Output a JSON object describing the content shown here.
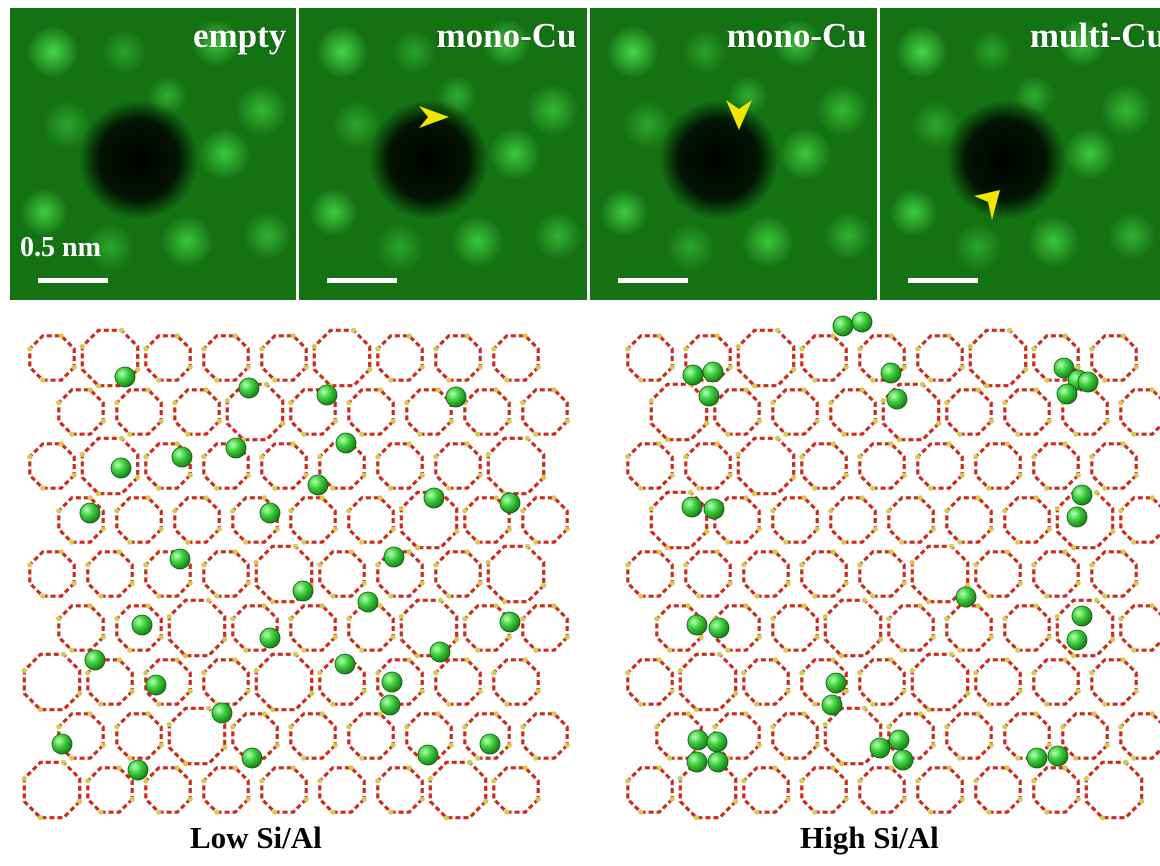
{
  "stem_panels": [
    {
      "label": "empty"
    },
    {
      "label": "mono-Cu"
    },
    {
      "label": "mono-Cu"
    },
    {
      "label": "multi-Cu"
    }
  ],
  "scale_bar": {
    "label": "0.5 nm"
  },
  "colors": {
    "stem_green": "#3cc63c",
    "arrow_yellow": "#f2e600",
    "bond_red": "#cc2a1a",
    "silicon_yellow": "#d8c850",
    "cu_green": "#3ecf3e"
  },
  "lattices": [
    {
      "caption": "Low Si/Al"
    },
    {
      "caption": "High Si/Al"
    }
  ]
}
